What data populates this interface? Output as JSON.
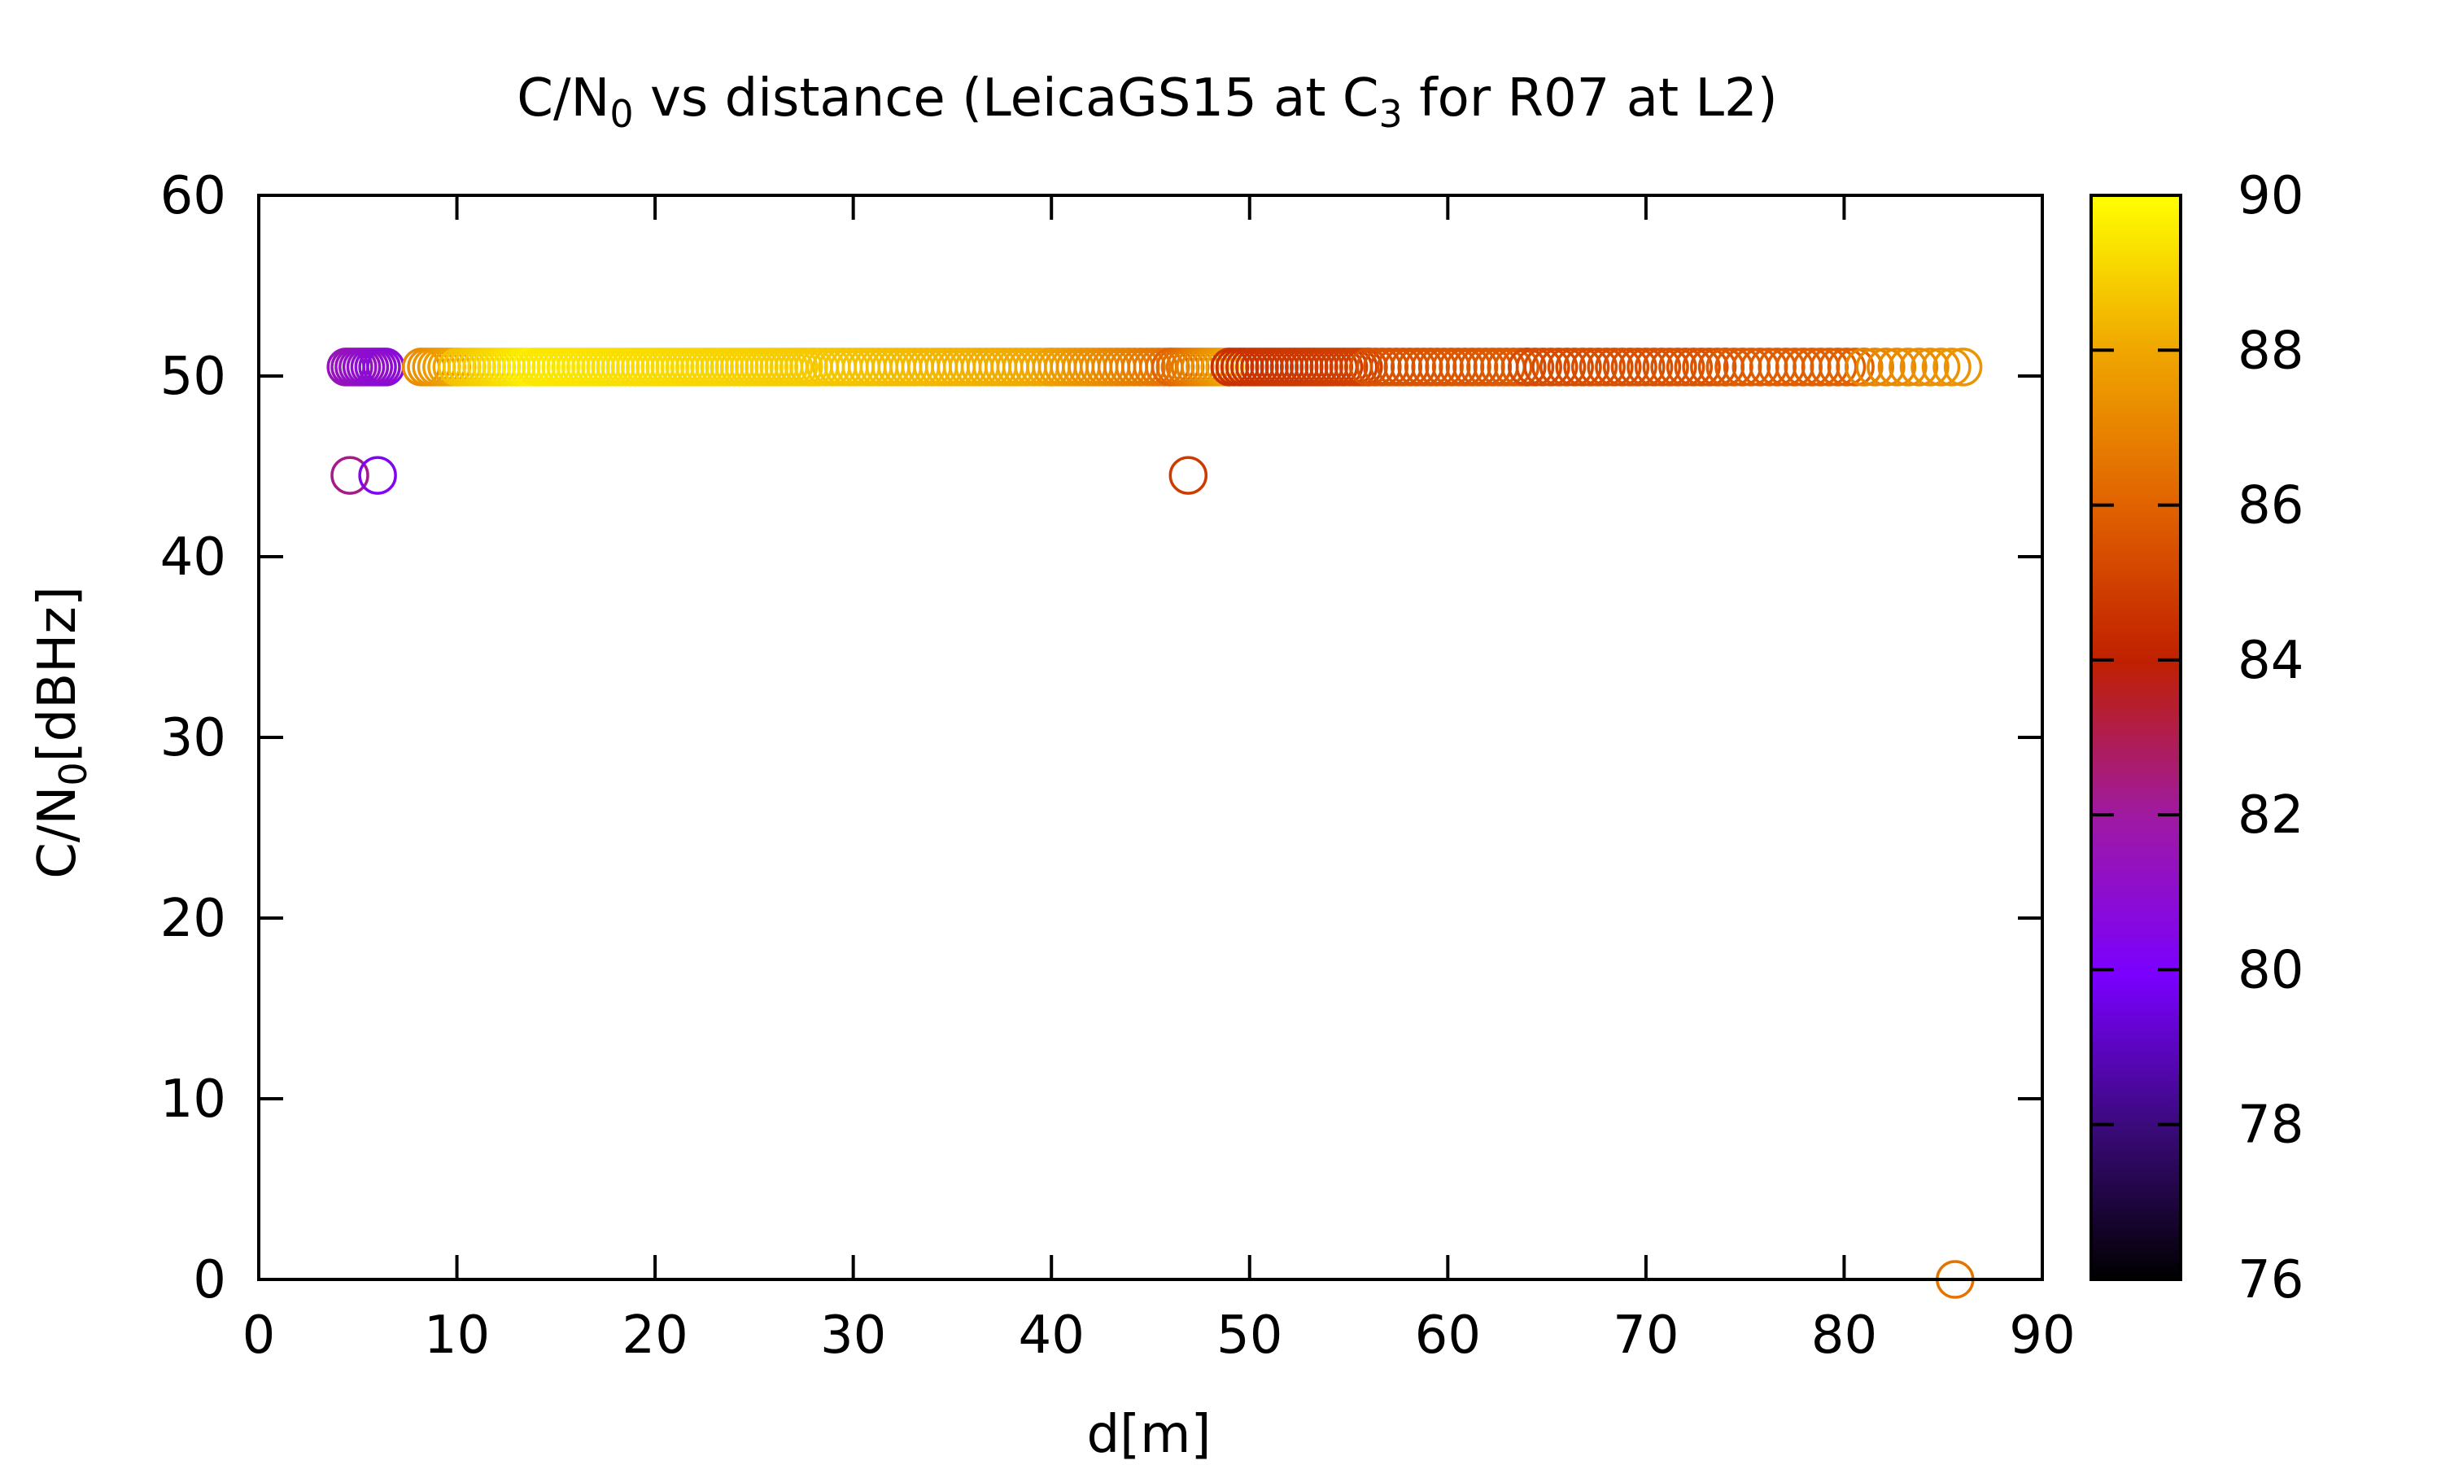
{
  "chart_data": {
    "type": "scatter",
    "title_prefix": "C/N",
    "title_sub": "0",
    "title_mid": " vs distance (LeicaGS15 at C",
    "title_sub2": "3",
    "title_suffix": " for R07 at L2)",
    "xlabel": "d[m]",
    "ylabel_prefix": "C/N",
    "ylabel_sub": "0",
    "ylabel_suffix": "[dBHz]",
    "xlim": [
      0,
      90
    ],
    "ylim": [
      0,
      60
    ],
    "x_ticks": [
      0,
      10,
      20,
      30,
      40,
      50,
      60,
      70,
      80,
      90
    ],
    "y_ticks": [
      0,
      10,
      20,
      30,
      40,
      50,
      60
    ],
    "colorbar": {
      "range": [
        76,
        90
      ],
      "ticks": [
        76,
        78,
        80,
        82,
        84,
        86,
        88,
        90
      ],
      "palette": "black-purple-red-orange-yellow"
    },
    "series": [
      {
        "marker": "open-circle",
        "points": [
          {
            "x": 4.6,
            "y": 44.5,
            "c": 82.3
          },
          {
            "x": 6.0,
            "y": 44.5,
            "c": 80.3
          },
          {
            "x": 46.9,
            "y": 44.5,
            "c": 84.8
          },
          {
            "x": 85.6,
            "y": 0.0,
            "c": 86.5
          }
        ],
        "bands": [
          {
            "x_start": 4.4,
            "x_end": 6.4,
            "step": 0.2,
            "y": 50.5,
            "c_start": 81.5,
            "c_end": 80.8
          },
          {
            "x_start": 8.2,
            "x_end": 10.0,
            "step": 0.25,
            "y": 50.5,
            "c_start": 87.2,
            "c_end": 88.0
          },
          {
            "x_start": 10.0,
            "x_end": 14.0,
            "step": 0.25,
            "y": 50.5,
            "c_start": 88.6,
            "c_end": 89.7
          },
          {
            "x_start": 14.0,
            "x_end": 28.0,
            "step": 0.25,
            "y": 50.5,
            "c_start": 89.5,
            "c_end": 88.8
          },
          {
            "x_start": 28.0,
            "x_end": 40.0,
            "step": 0.3,
            "y": 50.5,
            "c_start": 88.8,
            "c_end": 88.0
          },
          {
            "x_start": 40.0,
            "x_end": 46.0,
            "step": 0.3,
            "y": 50.5,
            "c_start": 87.8,
            "c_end": 86.5
          },
          {
            "x_start": 46.0,
            "x_end": 49.0,
            "step": 0.25,
            "y": 50.5,
            "c_start": 86.0,
            "c_end": 88.0
          },
          {
            "x_start": 49.0,
            "x_end": 56.0,
            "step": 0.25,
            "y": 50.5,
            "c_start": 84.5,
            "c_end": 85.0
          },
          {
            "x_start": 56.0,
            "x_end": 64.0,
            "step": 0.35,
            "y": 50.5,
            "c_start": 85.5,
            "c_end": 85.8
          },
          {
            "x_start": 64.0,
            "x_end": 74.0,
            "step": 0.4,
            "y": 50.5,
            "c_start": 85.3,
            "c_end": 85.6
          },
          {
            "x_start": 74.0,
            "x_end": 81.0,
            "step": 0.45,
            "y": 50.5,
            "c_start": 85.8,
            "c_end": 86.0
          },
          {
            "x_start": 81.0,
            "x_end": 86.0,
            "step": 0.55,
            "y": 50.5,
            "c_start": 87.0,
            "c_end": 87.5
          }
        ]
      }
    ]
  }
}
